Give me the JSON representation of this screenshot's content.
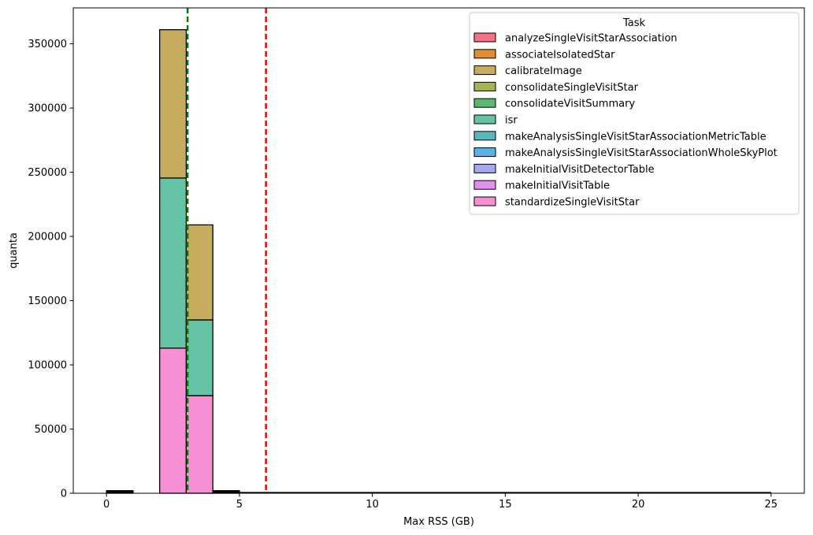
{
  "chart_data": {
    "type": "bar",
    "subtype": "stacked-histogram",
    "xlabel": "Max RSS (GB)",
    "ylabel": "quanta",
    "xlim": [
      -1.25,
      26.25
    ],
    "ylim": [
      0,
      378000
    ],
    "xticks": [
      0,
      5,
      10,
      15,
      20,
      25
    ],
    "yticks": [
      0,
      50000,
      100000,
      150000,
      200000,
      250000,
      300000,
      350000
    ],
    "bin_width": 1,
    "bins": [
      {
        "start": 0,
        "segments": [
          {
            "task": "standardizeSingleVisitStar",
            "value": 500
          },
          {
            "task": "isr",
            "value": 500
          },
          {
            "task": "consolidateVisitSummary",
            "value": 500
          },
          {
            "task": "calibrateImage",
            "value": 500
          }
        ]
      },
      {
        "start": 1,
        "segments": []
      },
      {
        "start": 2,
        "segments": [
          {
            "task": "standardizeSingleVisitStar",
            "value": 113000
          },
          {
            "task": "isr",
            "value": 132500
          },
          {
            "task": "calibrateImage",
            "value": 115500
          }
        ]
      },
      {
        "start": 3,
        "segments": [
          {
            "task": "standardizeSingleVisitStar",
            "value": 76000
          },
          {
            "task": "isr",
            "value": 59000
          },
          {
            "task": "calibrateImage",
            "value": 74000
          }
        ]
      },
      {
        "start": 4,
        "segments": [
          {
            "task": "standardizeSingleVisitStar",
            "value": 500
          },
          {
            "task": "isr",
            "value": 500
          },
          {
            "task": "calibrateImage",
            "value": 500
          },
          {
            "task": "consolidateVisitSummary",
            "value": 500
          }
        ]
      }
    ],
    "baseline_range": [
      5,
      25
    ],
    "vlines": [
      {
        "x": 3.05,
        "color": "#008000",
        "style": "dashed",
        "name": "green-dashed-line"
      },
      {
        "x": 6.0,
        "color": "#ff0000",
        "style": "dashed",
        "name": "red-dashed-line"
      }
    ],
    "legend": {
      "title": "Task",
      "placement": "top-right",
      "entries": [
        {
          "label": "analyzeSingleVisitStarAssociation",
          "color": "#f77189"
        },
        {
          "label": "associateIsolatedStar",
          "color": "#e18d32"
        },
        {
          "label": "calibrateImage",
          "color": "#c5ac5e"
        },
        {
          "label": "consolidateSingleVisitStar",
          "color": "#a7b54f"
        },
        {
          "label": "consolidateVisitSummary",
          "color": "#5ab86f"
        },
        {
          "label": "isr",
          "color": "#66c2a5"
        },
        {
          "label": "makeAnalysisSingleVisitStarAssociationMetricTable",
          "color": "#5ab8bd"
        },
        {
          "label": "makeAnalysisSingleVisitStarAssociationWholeSkyPlot",
          "color": "#5ab3e4"
        },
        {
          "label": "makeInitialVisitDetectorTable",
          "color": "#a5a8f0"
        },
        {
          "label": "makeInitialVisitTable",
          "color": "#e190ed"
        },
        {
          "label": "standardizeSingleVisitStar",
          "color": "#f78fd4"
        }
      ]
    }
  }
}
